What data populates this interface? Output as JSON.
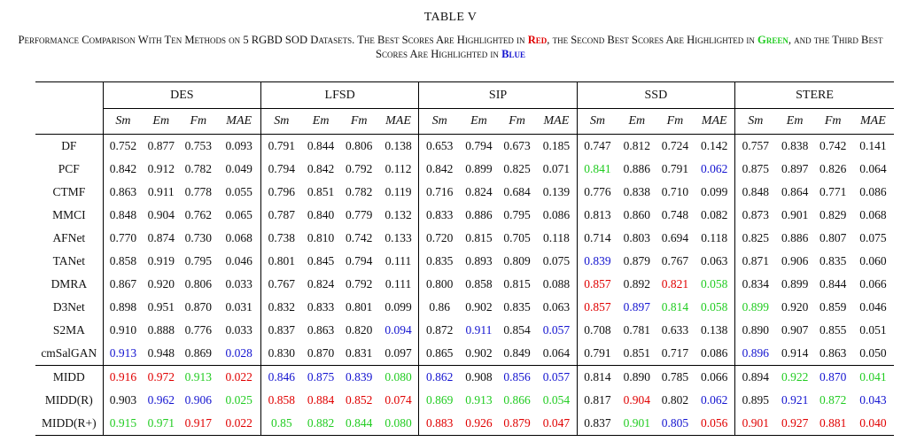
{
  "table_label": "TABLE V",
  "caption": {
    "part1": "Performance Comparison With Ten Methods on 5 RGBD SOD Datasets. The Best Scores Are Highlighted in ",
    "red_word": "Red",
    "part2": ", the Second Best Scores Are Highlighted in ",
    "green_word": "Green",
    "part3": ", and the Third Best Scores Are Highlighted in ",
    "blue_word": "Blue"
  },
  "datasets": [
    "DES",
    "LFSD",
    "SIP",
    "SSD",
    "STERE"
  ],
  "metrics": [
    "Sm",
    "Em",
    "Fm",
    "MAE"
  ],
  "colors": {
    "red": "#e00000",
    "green": "#22cc22",
    "blue": "#1414d0"
  },
  "rows": [
    {
      "method": "DF",
      "values": [
        "0.752",
        "0.877",
        "0.753",
        "0.093",
        "0.791",
        "0.844",
        "0.806",
        "0.138",
        "0.653",
        "0.794",
        "0.673",
        "0.185",
        "0.747",
        "0.812",
        "0.724",
        "0.142",
        "0.757",
        "0.838",
        "0.742",
        "0.141"
      ],
      "colors": [
        "",
        "",
        "",
        "",
        "",
        "",
        "",
        "",
        "",
        "",
        "",
        "",
        "",
        "",
        "",
        "",
        "",
        "",
        "",
        ""
      ]
    },
    {
      "method": "PCF",
      "values": [
        "0.842",
        "0.912",
        "0.782",
        "0.049",
        "0.794",
        "0.842",
        "0.792",
        "0.112",
        "0.842",
        "0.899",
        "0.825",
        "0.071",
        "0.841",
        "0.886",
        "0.791",
        "0.062",
        "0.875",
        "0.897",
        "0.826",
        "0.064"
      ],
      "colors": [
        "",
        "",
        "",
        "",
        "",
        "",
        "",
        "",
        "",
        "",
        "",
        "",
        "green",
        "",
        "",
        "blue",
        "",
        "",
        "",
        ""
      ]
    },
    {
      "method": "CTMF",
      "values": [
        "0.863",
        "0.911",
        "0.778",
        "0.055",
        "0.796",
        "0.851",
        "0.782",
        "0.119",
        "0.716",
        "0.824",
        "0.684",
        "0.139",
        "0.776",
        "0.838",
        "0.710",
        "0.099",
        "0.848",
        "0.864",
        "0.771",
        "0.086"
      ],
      "colors": [
        "",
        "",
        "",
        "",
        "",
        "",
        "",
        "",
        "",
        "",
        "",
        "",
        "",
        "",
        "",
        "",
        "",
        "",
        "",
        ""
      ]
    },
    {
      "method": "MMCI",
      "values": [
        "0.848",
        "0.904",
        "0.762",
        "0.065",
        "0.787",
        "0.840",
        "0.779",
        "0.132",
        "0.833",
        "0.886",
        "0.795",
        "0.086",
        "0.813",
        "0.860",
        "0.748",
        "0.082",
        "0.873",
        "0.901",
        "0.829",
        "0.068"
      ],
      "colors": [
        "",
        "",
        "",
        "",
        "",
        "",
        "",
        "",
        "",
        "",
        "",
        "",
        "",
        "",
        "",
        "",
        "",
        "",
        "",
        ""
      ]
    },
    {
      "method": "AFNet",
      "values": [
        "0.770",
        "0.874",
        "0.730",
        "0.068",
        "0.738",
        "0.810",
        "0.742",
        "0.133",
        "0.720",
        "0.815",
        "0.705",
        "0.118",
        "0.714",
        "0.803",
        "0.694",
        "0.118",
        "0.825",
        "0.886",
        "0.807",
        "0.075"
      ],
      "colors": [
        "",
        "",
        "",
        "",
        "",
        "",
        "",
        "",
        "",
        "",
        "",
        "",
        "",
        "",
        "",
        "",
        "",
        "",
        "",
        ""
      ]
    },
    {
      "method": "TANet",
      "values": [
        "0.858",
        "0.919",
        "0.795",
        "0.046",
        "0.801",
        "0.845",
        "0.794",
        "0.111",
        "0.835",
        "0.893",
        "0.809",
        "0.075",
        "0.839",
        "0.879",
        "0.767",
        "0.063",
        "0.871",
        "0.906",
        "0.835",
        "0.060"
      ],
      "colors": [
        "",
        "",
        "",
        "",
        "",
        "",
        "",
        "",
        "",
        "",
        "",
        "",
        "blue",
        "",
        "",
        "",
        "",
        "",
        "",
        ""
      ]
    },
    {
      "method": "DMRA",
      "values": [
        "0.867",
        "0.920",
        "0.806",
        "0.033",
        "0.767",
        "0.824",
        "0.792",
        "0.111",
        "0.800",
        "0.858",
        "0.815",
        "0.088",
        "0.857",
        "0.892",
        "0.821",
        "0.058",
        "0.834",
        "0.899",
        "0.844",
        "0.066"
      ],
      "colors": [
        "",
        "",
        "",
        "",
        "",
        "",
        "",
        "",
        "",
        "",
        "",
        "",
        "red",
        "",
        "red",
        "green",
        "",
        "",
        "",
        ""
      ]
    },
    {
      "method": "D3Net",
      "values": [
        "0.898",
        "0.951",
        "0.870",
        "0.031",
        "0.832",
        "0.833",
        "0.801",
        "0.099",
        "0.86",
        "0.902",
        "0.835",
        "0.063",
        "0.857",
        "0.897",
        "0.814",
        "0.058",
        "0.899",
        "0.920",
        "0.859",
        "0.046"
      ],
      "colors": [
        "",
        "",
        "",
        "",
        "",
        "",
        "",
        "",
        "",
        "",
        "",
        "",
        "red",
        "blue",
        "green",
        "green",
        "green",
        "",
        "",
        ""
      ]
    },
    {
      "method": "S2MA",
      "values": [
        "0.910",
        "0.888",
        "0.776",
        "0.033",
        "0.837",
        "0.863",
        "0.820",
        "0.094",
        "0.872",
        "0.911",
        "0.854",
        "0.057",
        "0.708",
        "0.781",
        "0.633",
        "0.138",
        "0.890",
        "0.907",
        "0.855",
        "0.051"
      ],
      "colors": [
        "",
        "",
        "",
        "",
        "",
        "",
        "",
        "blue",
        "",
        "blue",
        "",
        "blue",
        "",
        "",
        "",
        "",
        "",
        "",
        "",
        ""
      ]
    },
    {
      "method": "cmSalGAN",
      "values": [
        "0.913",
        "0.948",
        "0.869",
        "0.028",
        "0.830",
        "0.870",
        "0.831",
        "0.097",
        "0.865",
        "0.902",
        "0.849",
        "0.064",
        "0.791",
        "0.851",
        "0.717",
        "0.086",
        "0.896",
        "0.914",
        "0.863",
        "0.050"
      ],
      "colors": [
        "blue",
        "",
        "",
        "blue",
        "",
        "",
        "",
        "",
        "",
        "",
        "",
        "",
        "",
        "",
        "",
        "",
        "blue",
        "",
        "",
        ""
      ]
    },
    {
      "method": "MIDD",
      "values": [
        "0.916",
        "0.972",
        "0.913",
        "0.022",
        "0.846",
        "0.875",
        "0.839",
        "0.080",
        "0.862",
        "0.908",
        "0.856",
        "0.057",
        "0.814",
        "0.890",
        "0.785",
        "0.066",
        "0.894",
        "0.922",
        "0.870",
        "0.041"
      ],
      "colors": [
        "red",
        "red",
        "green",
        "red",
        "blue",
        "blue",
        "blue",
        "green",
        "blue",
        "",
        "blue",
        "blue",
        "",
        "",
        "",
        "",
        "",
        "green",
        "blue",
        "green"
      ]
    },
    {
      "method": "MIDD(R)",
      "values": [
        "0.903",
        "0.962",
        "0.906",
        "0.025",
        "0.858",
        "0.884",
        "0.852",
        "0.074",
        "0.869",
        "0.913",
        "0.866",
        "0.054",
        "0.817",
        "0.904",
        "0.802",
        "0.062",
        "0.895",
        "0.921",
        "0.872",
        "0.043"
      ],
      "colors": [
        "",
        "blue",
        "blue",
        "green",
        "red",
        "red",
        "red",
        "red",
        "green",
        "green",
        "green",
        "green",
        "",
        "red",
        "",
        "blue",
        "",
        "blue",
        "green",
        "blue"
      ]
    },
    {
      "method": "MIDD(R+)",
      "values": [
        "0.915",
        "0.971",
        "0.917",
        "0.022",
        "0.85",
        "0.882",
        "0.844",
        "0.080",
        "0.883",
        "0.926",
        "0.879",
        "0.047",
        "0.837",
        "0.901",
        "0.805",
        "0.056",
        "0.901",
        "0.927",
        "0.881",
        "0.040"
      ],
      "colors": [
        "green",
        "green",
        "red",
        "red",
        "green",
        "green",
        "green",
        "green",
        "red",
        "red",
        "red",
        "red",
        "",
        "green",
        "blue",
        "red",
        "red",
        "red",
        "red",
        "red"
      ]
    }
  ]
}
